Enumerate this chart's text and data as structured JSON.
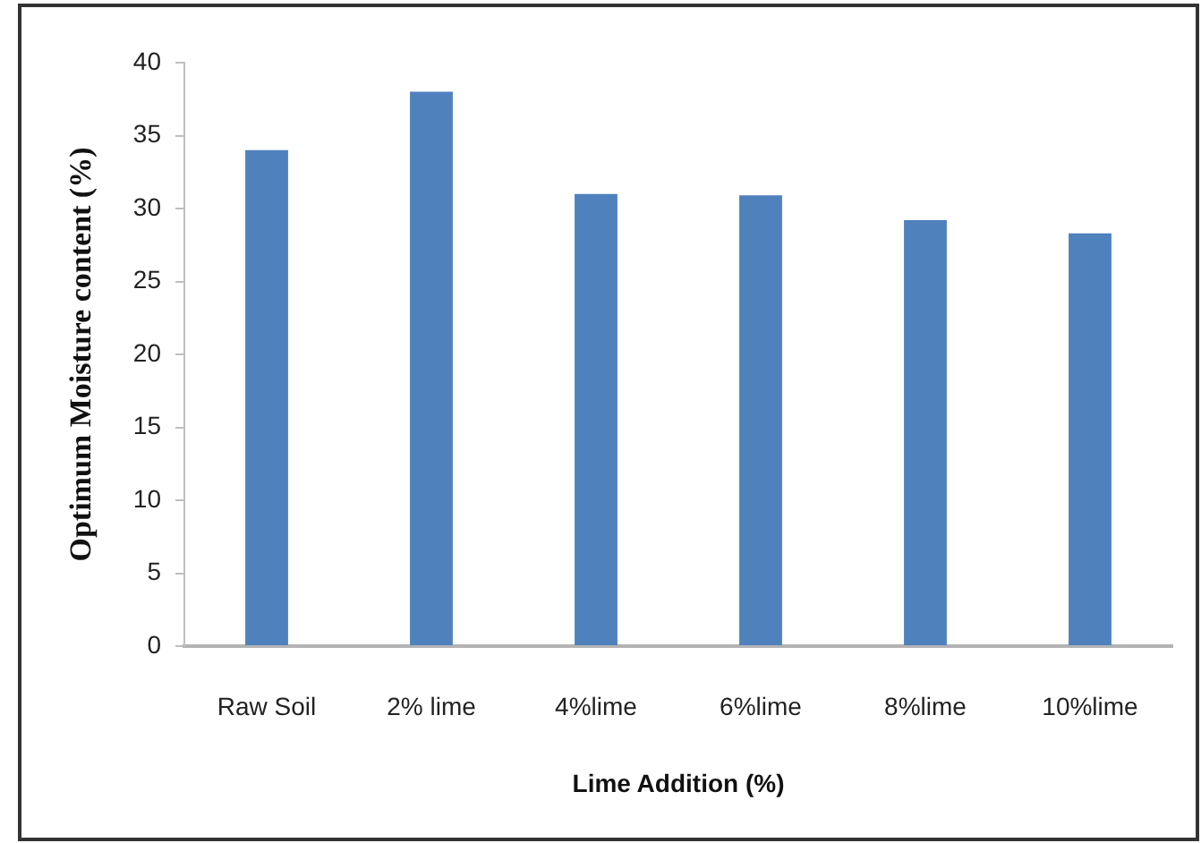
{
  "chart_data": {
    "type": "bar",
    "xlabel": "Lime Addition (%)",
    "ylabel": "Optimum Moisture content (%)",
    "categories": [
      "Raw Soil",
      "2% lime",
      "4%lime",
      "6%lime",
      "8%lime",
      "10%lime"
    ],
    "values": [
      34,
      38,
      31,
      30.9,
      29.2,
      28.3
    ],
    "color": "#4f81bd",
    "ylim": [
      0,
      40
    ],
    "yticks": [
      0,
      5,
      10,
      15,
      20,
      25,
      30,
      35,
      40
    ],
    "grid": false,
    "legend": false
  }
}
